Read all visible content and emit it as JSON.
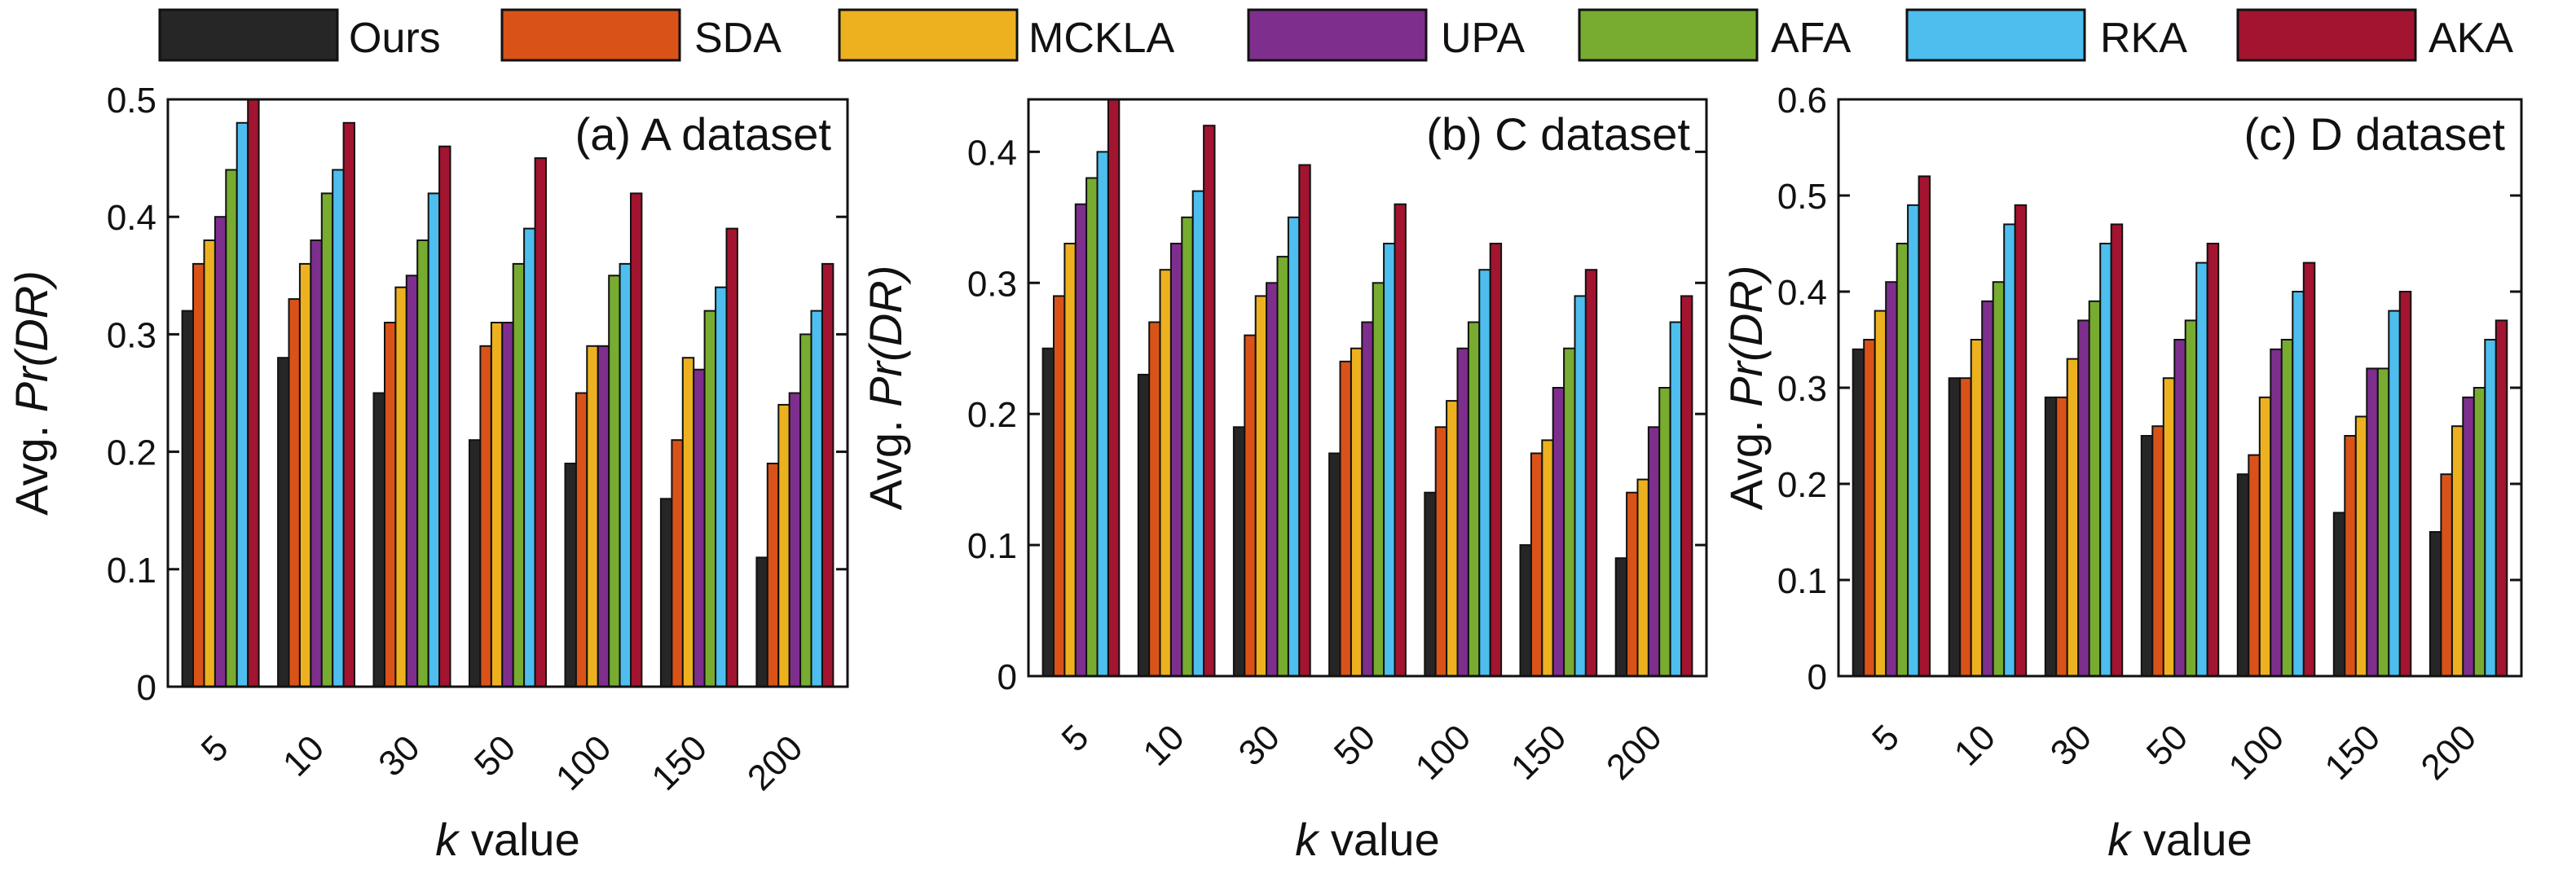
{
  "legend": [
    {
      "name": "Ours",
      "color": "#262626"
    },
    {
      "name": "SDA",
      "color": "#D95319"
    },
    {
      "name": "MCKLA",
      "color": "#EDB120"
    },
    {
      "name": "UPA",
      "color": "#7E2F8E"
    },
    {
      "name": "AFA",
      "color": "#77AC30"
    },
    {
      "name": "RKA",
      "color": "#4DBEEE"
    },
    {
      "name": "AKA",
      "color": "#A2142F"
    }
  ],
  "chart_data": [
    {
      "type": "bar",
      "title": "(a) A dataset",
      "xlabel_italic": "k",
      "xlabel_rest": " value",
      "ylabel_prefix": "Avg. ",
      "ylabel_italic": "Pr(DR)",
      "categories": [
        "5",
        "10",
        "30",
        "50",
        "100",
        "150",
        "200"
      ],
      "ylim": [
        0,
        0.5
      ],
      "yticks": [
        "0",
        "0.1",
        "0.2",
        "0.3",
        "0.4",
        "0.5"
      ],
      "series": [
        {
          "name": "Ours",
          "values": [
            0.32,
            0.28,
            0.25,
            0.21,
            0.19,
            0.16,
            0.11
          ]
        },
        {
          "name": "SDA",
          "values": [
            0.36,
            0.33,
            0.31,
            0.29,
            0.25,
            0.21,
            0.19
          ]
        },
        {
          "name": "MCKLA",
          "values": [
            0.38,
            0.36,
            0.34,
            0.31,
            0.29,
            0.28,
            0.24
          ]
        },
        {
          "name": "UPA",
          "values": [
            0.4,
            0.38,
            0.35,
            0.31,
            0.29,
            0.27,
            0.25
          ]
        },
        {
          "name": "AFA",
          "values": [
            0.44,
            0.42,
            0.38,
            0.36,
            0.35,
            0.32,
            0.3
          ]
        },
        {
          "name": "RKA",
          "values": [
            0.48,
            0.44,
            0.42,
            0.39,
            0.36,
            0.34,
            0.32
          ]
        },
        {
          "name": "AKA",
          "values": [
            0.5,
            0.48,
            0.46,
            0.45,
            0.42,
            0.39,
            0.36
          ]
        }
      ]
    },
    {
      "type": "bar",
      "title": "(b) C dataset",
      "xlabel_italic": "k",
      "xlabel_rest": " value",
      "ylabel_prefix": "Avg. ",
      "ylabel_italic": "Pr(DR)",
      "categories": [
        "5",
        "10",
        "30",
        "50",
        "100",
        "150",
        "200"
      ],
      "ylim": [
        0,
        0.44
      ],
      "yticks": [
        "0",
        "0.1",
        "0.2",
        "0.3",
        "0.4"
      ],
      "series": [
        {
          "name": "Ours",
          "values": [
            0.25,
            0.23,
            0.19,
            0.17,
            0.14,
            0.1,
            0.09
          ]
        },
        {
          "name": "SDA",
          "values": [
            0.29,
            0.27,
            0.26,
            0.24,
            0.19,
            0.17,
            0.14
          ]
        },
        {
          "name": "MCKLA",
          "values": [
            0.33,
            0.31,
            0.29,
            0.25,
            0.21,
            0.18,
            0.15
          ]
        },
        {
          "name": "UPA",
          "values": [
            0.36,
            0.33,
            0.3,
            0.27,
            0.25,
            0.22,
            0.19
          ]
        },
        {
          "name": "AFA",
          "values": [
            0.38,
            0.35,
            0.32,
            0.3,
            0.27,
            0.25,
            0.22
          ]
        },
        {
          "name": "RKA",
          "values": [
            0.4,
            0.37,
            0.35,
            0.33,
            0.31,
            0.29,
            0.27
          ]
        },
        {
          "name": "AKA",
          "values": [
            0.44,
            0.42,
            0.39,
            0.36,
            0.33,
            0.31,
            0.29
          ]
        }
      ]
    },
    {
      "type": "bar",
      "title": "(c) D dataset",
      "xlabel_italic": "k",
      "xlabel_rest": " value",
      "ylabel_prefix": "Avg. ",
      "ylabel_italic": "Pr(DR)",
      "categories": [
        "5",
        "10",
        "30",
        "50",
        "100",
        "150",
        "200"
      ],
      "ylim": [
        0,
        0.6
      ],
      "yticks": [
        "0",
        "0.1",
        "0.2",
        "0.3",
        "0.4",
        "0.5",
        "0.6"
      ],
      "series": [
        {
          "name": "Ours",
          "values": [
            0.34,
            0.31,
            0.29,
            0.25,
            0.21,
            0.17,
            0.15
          ]
        },
        {
          "name": "SDA",
          "values": [
            0.35,
            0.31,
            0.29,
            0.26,
            0.23,
            0.25,
            0.21
          ]
        },
        {
          "name": "MCKLA",
          "values": [
            0.38,
            0.35,
            0.33,
            0.31,
            0.29,
            0.27,
            0.26
          ]
        },
        {
          "name": "UPA",
          "values": [
            0.41,
            0.39,
            0.37,
            0.35,
            0.34,
            0.32,
            0.29
          ]
        },
        {
          "name": "AFA",
          "values": [
            0.45,
            0.41,
            0.39,
            0.37,
            0.35,
            0.32,
            0.3
          ]
        },
        {
          "name": "RKA",
          "values": [
            0.49,
            0.47,
            0.45,
            0.43,
            0.4,
            0.38,
            0.35
          ]
        },
        {
          "name": "AKA",
          "values": [
            0.52,
            0.49,
            0.47,
            0.45,
            0.43,
            0.4,
            0.37
          ]
        }
      ]
    }
  ]
}
